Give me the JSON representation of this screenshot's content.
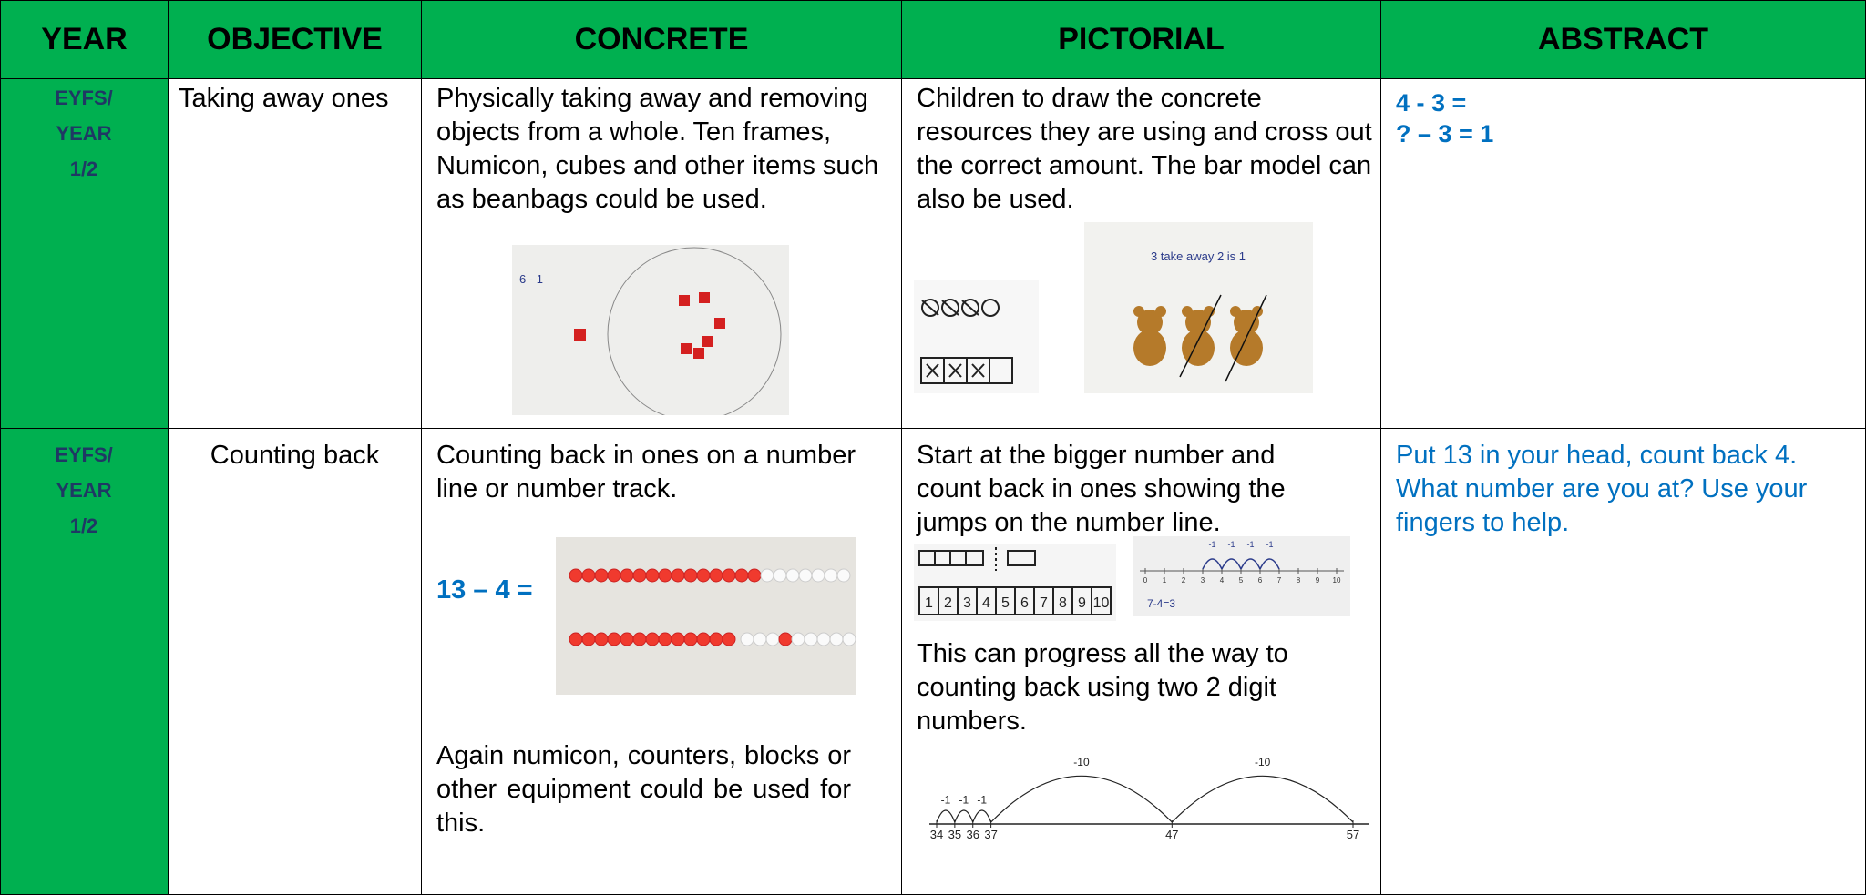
{
  "header": [
    "YEAR",
    "OBJECTIVE",
    "CONCRETE",
    "PICTORIAL",
    "ABSTRACT"
  ],
  "rows": [
    {
      "year": [
        "EYFS/",
        "YEAR",
        "1/2"
      ],
      "objective": "Taking away ones",
      "concrete": {
        "text": "Physically taking away and removing objects from a whole. Ten frames, Numicon, cubes and other items such as beanbags could be used.",
        "image_text": "6 - 1"
      },
      "pictorial": {
        "text": "Children to draw the concrete resources they are using and cross out the correct amount. The bar model can also be used.",
        "image_text": "3 take away 2 is 1"
      },
      "abstract": [
        "4 - 3 =",
        "? – 3 = 1"
      ]
    },
    {
      "year": [
        "EYFS/",
        "YEAR",
        "1/2"
      ],
      "objective": "Counting back",
      "concrete": {
        "text": "Counting back in ones on a number line or number track.",
        "equation": "13 – 4 =",
        "text_2": "Again numicon, counters, blocks or other equipment could be used for this."
      },
      "pictorial": {
        "text": "Start at the bigger number and count back in ones showing the jumps on the number line.",
        "track": [
          1,
          2,
          3,
          4,
          5,
          6,
          7,
          8,
          9,
          10
        ],
        "small_line": {
          "jumps": [
            "-1",
            "-1",
            "-1",
            "-1"
          ],
          "ticks": [
            0,
            1,
            2,
            3,
            4,
            5,
            6,
            7,
            8,
            9,
            10
          ],
          "sum": "7-4=3"
        },
        "text_2": "This can progress all the way to counting back using two 2 digit numbers.",
        "big_line": {
          "jumps": [
            "-1",
            "-1",
            "-1",
            "-10",
            "-10"
          ],
          "ticks": [
            34,
            35,
            36,
            37,
            47,
            57
          ]
        }
      },
      "abstract": "Put 13 in your head, count back 4. What number are you at? Use your fingers to help."
    }
  ]
}
